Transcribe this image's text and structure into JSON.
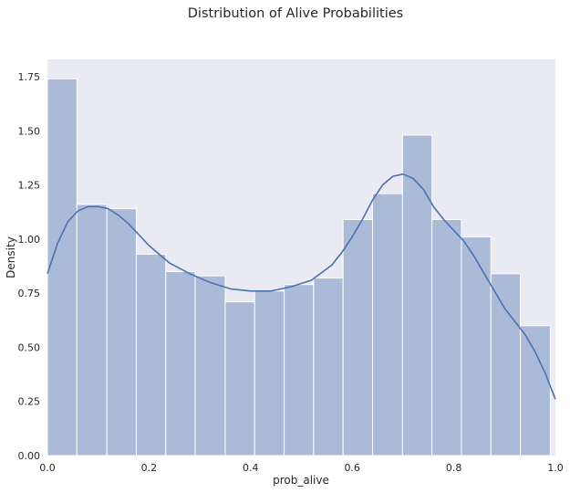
{
  "chart_data": {
    "type": "histogram",
    "title": "Distribution of Alive Probabilities",
    "xlabel": "prob_alive",
    "ylabel": "Density",
    "xlim": [
      0.0,
      1.0
    ],
    "ylim": [
      0.0,
      1.83
    ],
    "grid": false,
    "background_color": "#EAEAF2",
    "bar_color": "#ABBAD7",
    "bar_edge_color": "#ffffff",
    "kde_color": "#4C72B0",
    "bins": [
      {
        "x0": 0.0,
        "x1": 0.058,
        "density": 1.74
      },
      {
        "x0": 0.058,
        "x1": 0.117,
        "density": 1.16
      },
      {
        "x0": 0.117,
        "x1": 0.175,
        "density": 1.14
      },
      {
        "x0": 0.175,
        "x1": 0.233,
        "density": 0.93
      },
      {
        "x0": 0.233,
        "x1": 0.291,
        "density": 0.85
      },
      {
        "x0": 0.291,
        "x1": 0.35,
        "density": 0.83
      },
      {
        "x0": 0.35,
        "x1": 0.408,
        "density": 0.71
      },
      {
        "x0": 0.408,
        "x1": 0.466,
        "density": 0.76
      },
      {
        "x0": 0.466,
        "x1": 0.524,
        "density": 0.79
      },
      {
        "x0": 0.524,
        "x1": 0.582,
        "density": 0.82
      },
      {
        "x0": 0.582,
        "x1": 0.64,
        "density": 1.09
      },
      {
        "x0": 0.64,
        "x1": 0.699,
        "density": 1.21
      },
      {
        "x0": 0.699,
        "x1": 0.757,
        "density": 1.48
      },
      {
        "x0": 0.757,
        "x1": 0.815,
        "density": 1.09
      },
      {
        "x0": 0.815,
        "x1": 0.873,
        "density": 1.01
      },
      {
        "x0": 0.873,
        "x1": 0.931,
        "density": 0.84
      },
      {
        "x0": 0.931,
        "x1": 0.99,
        "density": 0.6
      }
    ],
    "kde": {
      "x": [
        0.0,
        0.02,
        0.04,
        0.06,
        0.08,
        0.1,
        0.12,
        0.14,
        0.16,
        0.18,
        0.2,
        0.24,
        0.28,
        0.32,
        0.36,
        0.4,
        0.44,
        0.48,
        0.52,
        0.56,
        0.58,
        0.6,
        0.62,
        0.64,
        0.66,
        0.68,
        0.7,
        0.72,
        0.74,
        0.76,
        0.78,
        0.8,
        0.82,
        0.84,
        0.86,
        0.88,
        0.9,
        0.92,
        0.94,
        0.96,
        0.98,
        1.0
      ],
      "y": [
        0.84,
        0.98,
        1.08,
        1.13,
        1.15,
        1.15,
        1.14,
        1.11,
        1.07,
        1.02,
        0.97,
        0.89,
        0.84,
        0.8,
        0.77,
        0.76,
        0.76,
        0.78,
        0.81,
        0.88,
        0.94,
        1.01,
        1.09,
        1.18,
        1.25,
        1.29,
        1.3,
        1.28,
        1.23,
        1.15,
        1.09,
        1.04,
        0.99,
        0.92,
        0.84,
        0.76,
        0.68,
        0.62,
        0.56,
        0.48,
        0.38,
        0.26
      ]
    },
    "x_ticks": [
      0.0,
      0.2,
      0.4,
      0.6,
      0.8,
      1.0
    ],
    "x_tick_labels": [
      "0.0",
      "0.2",
      "0.4",
      "0.6",
      "0.8",
      "1.0"
    ],
    "y_ticks": [
      0.0,
      0.25,
      0.5,
      0.75,
      1.0,
      1.25,
      1.5,
      1.75
    ],
    "y_tick_labels": [
      "0.00",
      "0.25",
      "0.50",
      "0.75",
      "1.00",
      "1.25",
      "1.50",
      "1.75"
    ]
  }
}
